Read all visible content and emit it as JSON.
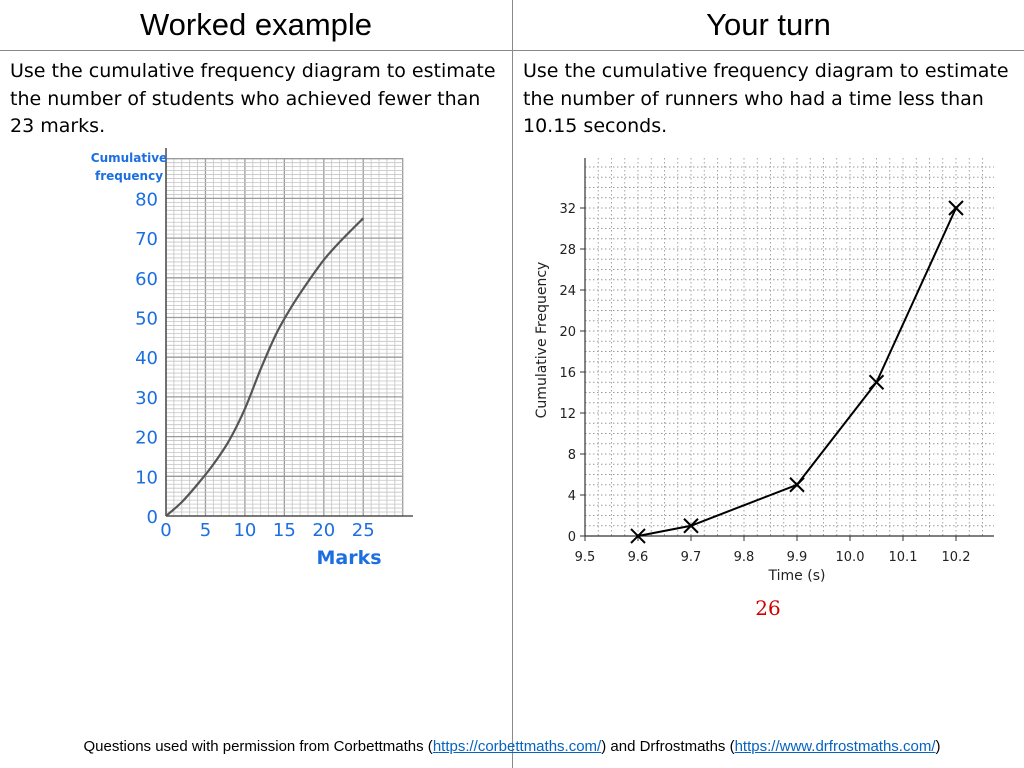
{
  "header": {
    "left_title": "Worked example",
    "right_title": "Your turn"
  },
  "worked": {
    "question": "Use the cumulative frequency diagram to estimate the number of students who achieved fewer than 23 marks."
  },
  "your_turn": {
    "question": "Use the cumulative frequency diagram to estimate the number of runners who had a time less than 10.15 seconds.",
    "answer": "26"
  },
  "footer": {
    "prefix": "Questions used with permission from Corbettmaths (",
    "link1": "https://corbettmaths.com/",
    "middle": ") and Drfrostmaths (",
    "link2": "https://www.drfrostmaths.com/",
    "suffix": ")"
  },
  "colors": {
    "blue_label": "#1c6fe0",
    "curve": "#555555",
    "grid": "#b0b0b0",
    "answer": "#d10000"
  },
  "chart_data": [
    {
      "type": "line",
      "title": "",
      "xlabel": "Marks",
      "ylabel": "Cumulative frequency",
      "xlim": [
        0,
        30
      ],
      "ylim": [
        0,
        80
      ],
      "x_ticks": [
        "0",
        "5",
        "10",
        "15",
        "20",
        "25"
      ],
      "y_ticks": [
        "0",
        "10",
        "20",
        "30",
        "40",
        "50",
        "60",
        "70",
        "80"
      ],
      "grid": true,
      "series": [
        {
          "x": [
            0,
            2,
            4,
            6,
            8,
            10,
            12,
            14,
            16,
            18,
            20,
            22,
            25
          ],
          "y": [
            0,
            3.5,
            8,
            13,
            19,
            27,
            37,
            46,
            53,
            59,
            64.5,
            69,
            75
          ]
        }
      ]
    },
    {
      "type": "line",
      "title": "",
      "xlabel": "Time (s)",
      "ylabel": "Cumulative Frequency",
      "xlim": [
        9.5,
        10.25
      ],
      "ylim": [
        0,
        36
      ],
      "x_ticks": [
        "9.5",
        "9.6",
        "9.7",
        "9.8",
        "9.9",
        "10.0",
        "10.1",
        "10.2"
      ],
      "y_ticks": [
        "0",
        "4",
        "8",
        "12",
        "16",
        "20",
        "24",
        "28",
        "32"
      ],
      "grid": true,
      "markers": "x",
      "series": [
        {
          "x": [
            9.6,
            9.7,
            9.9,
            10.05,
            10.2
          ],
          "y": [
            0,
            1,
            5,
            15,
            32
          ]
        }
      ]
    }
  ]
}
